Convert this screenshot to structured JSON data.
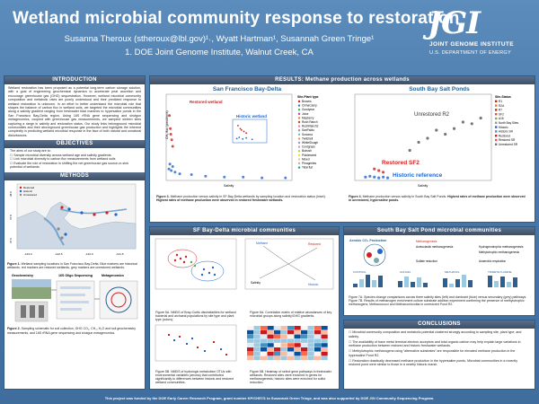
{
  "header": {
    "title": "Wetland microbial community response to restoration",
    "authors": "Susanna Theroux (stheroux@lbl.gov)¹˒, Wyatt Hartman¹, Susannah Green Tringe¹",
    "affiliation": "1. DOE Joint Genome Institute, Walnut Creek, CA",
    "logo_text": "JGI",
    "logo_sub1": "JOINT GENOME INSTITUTE",
    "logo_sub2": "U.S. DEPARTMENT OF ENERGY"
  },
  "intro": {
    "heading": "INTRODUCTION",
    "text": "Wetland restoration has been proposed as a potential long-term carbon storage solution, with a goal of engineering geochemical dynamics to accelerate peat accretion and encourage greenhouse gas (GHG) sequestration. However, wetland microbial community composition and metabolic rates are poorly understood and their predicted response to wetland restoration is unknown. In an effort to better understand the microbial role that shapes the balance of carbon flux in wetland soils, we targeted the microbial communities along a salinity gradient ranging from freshwater tidal marshes to hypersaline ponds in the San Francisco Bay-Delta region. Using 16S rRNA gene sequencing and shotgun metagenomics, coupled with greenhouse gas measurements, we sampled sixteen sites capturing a range in salinity and restoration status. Our study links belowground microbial communities and their aboveground greenhouse gas production and highlights the inherent complexity in predicting wetland microbial response in the face of both natural and unnatural disturbances."
  },
  "objectives": {
    "heading": "OBJECTIVES",
    "lead": "The aims of our study are to:",
    "items": [
      "Sample microbial diversity across wetland age and salinity gradients",
      "Link microbial diversity to carbon flux measurements from wetland soils",
      "Evaluate the role of restoration in shifting the net greenhouse gas source-or-sink potential of wetlands"
    ]
  },
  "methods": {
    "heading": "METHODS",
    "map_axis_labels": [
      "-123.0",
      "-122.5",
      "-122.0",
      "-121.5"
    ],
    "map_y_labels": [
      "38.0",
      "37.8",
      "37.6"
    ],
    "map_legend": [
      "Restored",
      "Historic",
      "Unrestored"
    ],
    "fig1_caption_bold": "Figure 1.",
    "fig1_caption": " Wetland sampling locations in San Francisco Bay-Delta. Blue markers are historical wetlands, red markers are restored wetlands, grey markers are unrestored wetlands.",
    "schematic_labels": [
      "Geochemistry",
      "16S Oligo Sequencing",
      "Metagenomics"
    ],
    "fig2_caption_bold": "Figure 2.",
    "fig2_caption": " Sampling schematic for soil collection, GHG CO₂, CH₄, H₂O and soil geochemistry measurements, and 16S rRNA gene sequencing and shotgun metagenomics."
  },
  "results": {
    "heading": "RESULTS: Methane production across wetlands",
    "sf_title": "San Francisco Bay-Delta",
    "sp_title": "South Bay Salt Ponds",
    "sf_ylabel": "CH₄ flux (µmol/m²/s)",
    "sf_xlabel": "Salinity",
    "sp_xlabel": "Salinity",
    "sf_annot_restored": "Restored wetland",
    "sf_annot_historic": "Historic wetland",
    "sp_annot_unrestored": "Unrestored R2",
    "sp_annot_restored": "Restored SF2",
    "sp_annot_historic": "Historic reference",
    "sf_legend_title": "Site-Plant type",
    "sf_legend": [
      "Browns",
      "ChinaCamp",
      "Goodyear",
      "Joice",
      "Mayberry",
      "Rush Ranch",
      "RushRanch2",
      "SanPablo",
      "Sonoma",
      "Twitchell",
      "WhiteSlough",
      "Cordgrass",
      "Bulrush",
      "Pickleweed",
      "Mixed",
      "Phragmites",
      "Tidal flat"
    ],
    "sp_legend_title": "Site-Status",
    "sp_legend": [
      "R1",
      "R2A",
      "R7",
      "SF2",
      "A16",
      "North Bay Sites",
      "Historic",
      "Historic SR",
      "Restored",
      "Restored SR",
      "Unrestored SR"
    ],
    "fig3_caption_bold": "Figure 3.",
    "fig3_caption": " Methane production versus salinity in SF Bay-Delta wetlands by sampling location and restoration status (inset). ",
    "fig3_caption_bold2": "Highest rates of methane production were observed in restored freshwater wetlands.",
    "fig4_caption_bold": "Figure 4.",
    "fig4_caption": " Methane production versus salinity in South Bay Salt Ponds. ",
    "fig4_caption_bold2": "Highest rates of methane production were observed in unrestored, hypersaline ponds."
  },
  "sf_communities": {
    "heading": "SF Bay-Delta microbial communities",
    "fig5a_caption": "Figure 5A. NMDS of Bray-Curtis dissimilarities for wetland bacterial and archaeal populations by site type and plant type (colors).",
    "fig5b_caption": "Figure 5B. NMDS of hydrologic metabolism OTUs with environmental variables (arrows) that contributed significantly to differences between historic and restored wetland communities.",
    "fig6a_caption": "Figure 6A. Correlation matrix of relative abundances of key microbial groups along salinity/GHG gradients.",
    "fig6b_caption": "Figure 6B. Heatmap of select gene pathways in freshwater wetlands. Restored sites were enriched in genes for methanogenesis; historic sites were enriched for sulfur reduction.",
    "nmds_labels": [
      "Methane",
      "Restored",
      "Historic",
      "Salinity"
    ]
  },
  "sp_communities": {
    "heading": "South Bay Salt Pond microbial communities",
    "diagram_title": "Aerobic CO₂ Production",
    "diagram_labels": [
      "Methanogenesis",
      "Acetoclastic methanogenesis",
      "Hydrogenotrophic methanogenesis",
      "Methylotrophic methanogenesis",
      "Sulfate reduction",
      "Anaerobic respiration"
    ],
    "bar_labels": [
      "CONTROL",
      "A16-R2A",
      "METHANOL",
      "TRIMETHYLAMINE"
    ],
    "fig7_caption": "Figure 7A. Species change comparisons across three salinity sites (left) and dominant (blue) versus secondary (grey) pathways. Figure 7B. Results of methanogen enrichment culture substrate addition experiment confirming the presence of methylotrophic methanogens; Methanococci and Methanomicrobia in unrestored Pond R2."
  },
  "conclusions": {
    "heading": "CONCLUSIONS",
    "items": [
      "Microbial community composition and metabolic potential clustered strongly according to sampling site, plant type, and salinity.",
      "The availability of trace metal terminal electron acceptors and total organic carbon may help explain large variations in methane production between restored and historic freshwater wetlands.",
      "Methylotrophic methanogens using “alternative substrates” are responsible for elevated methane production in the hypersaline Pond R2.",
      "Restoration drastically decreased methane production in the hypersaline ponds. Microbial communities in a recently restored pond were similar to those in a nearby historic marsh."
    ]
  },
  "footer": {
    "text": "This project was funded by the DOE Early Career Research Program, grant number KP/CH57/1 to Susannah Green Tringe, and was also supported by DOE JGI Community Sequencing Program."
  },
  "chart_data": [
    {
      "type": "scatter",
      "title": "San Francisco Bay-Delta",
      "xlabel": "Salinity",
      "ylabel": "CH₄ flux (µmol/m²/s)",
      "series": [
        {
          "name": "Restored wetland",
          "x": [
            0.3,
            0.5,
            0.6,
            0.8,
            1.0
          ],
          "y": [
            0.78,
            0.62,
            0.55,
            0.48,
            0.4
          ]
        },
        {
          "name": "Historic wetland",
          "x": [
            0.2,
            0.4,
            0.7,
            1.0,
            1.5,
            2.5,
            5,
            8,
            12,
            16,
            20,
            25
          ],
          "y": [
            0.12,
            0.18,
            0.1,
            0.15,
            0.08,
            0.06,
            0.05,
            0.03,
            0.02,
            0.02,
            0.01,
            0.01
          ]
        }
      ]
    },
    {
      "type": "scatter",
      "title": "South Bay Salt Ponds",
      "xlabel": "Salinity",
      "series": [
        {
          "name": "Unrestored R2",
          "x": [
            60,
            70,
            80,
            90,
            100,
            110,
            120,
            130,
            140
          ],
          "y": [
            0.35,
            0.45,
            0.5,
            0.6,
            0.55,
            0.62,
            0.7,
            0.68,
            0.75
          ]
        },
        {
          "name": "Restored SF2",
          "x": [
            20,
            25,
            30
          ],
          "y": [
            0.12,
            0.1,
            0.08
          ]
        },
        {
          "name": "Historic reference",
          "x": [
            10,
            15,
            20,
            25,
            30,
            35
          ],
          "y": [
            0.02,
            0.03,
            0.02,
            0.01,
            0.02,
            0.01
          ]
        }
      ]
    }
  ],
  "colors": {
    "background": "#4f7fae",
    "section_head": "#3c4e66",
    "accent_blue": "#2d5f91",
    "restored_red": "#d22020",
    "historic_blue": "#2266cc"
  }
}
